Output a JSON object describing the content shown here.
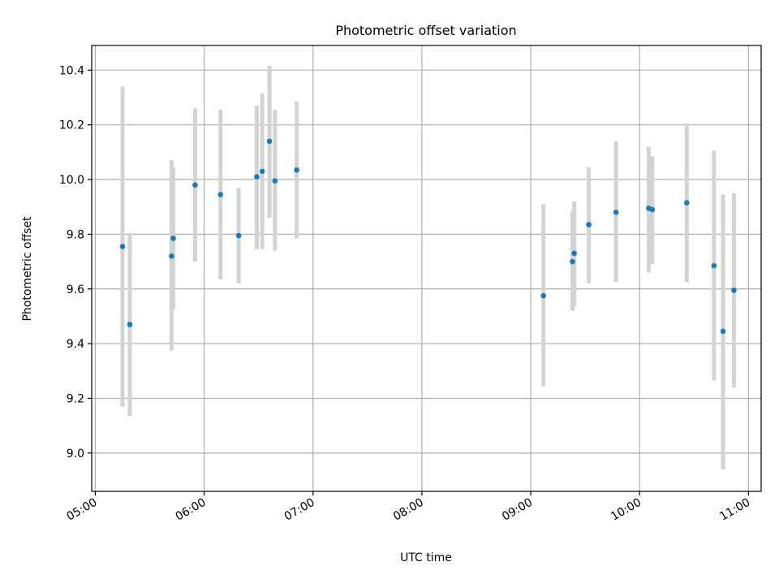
{
  "chart_data": {
    "type": "scatter",
    "title": "Photometric offset variation",
    "xlabel": "UTC time",
    "ylabel": "Photometric offset",
    "xlim": [
      "04:58",
      "11:07"
    ],
    "ylim": [
      8.86,
      10.49
    ],
    "grid": true,
    "x_ticks": [
      "05:00",
      "06:00",
      "07:00",
      "08:00",
      "09:00",
      "10:00",
      "11:00"
    ],
    "y_ticks": [
      "9.0",
      "9.2",
      "9.4",
      "9.6",
      "9.8",
      "10.0",
      "10.2",
      "10.4"
    ],
    "marker_color": "#1f77b4",
    "errorbar_color": "#d3d3d3",
    "series": [
      {
        "points": [
          {
            "x": "05:15",
            "y": 9.755,
            "ylo": 9.17,
            "yhi": 10.34
          },
          {
            "x": "05:19",
            "y": 9.47,
            "ylo": 9.135,
            "yhi": 9.805
          },
          {
            "x": "05:42",
            "y": 9.72,
            "ylo": 9.375,
            "yhi": 10.07
          },
          {
            "x": "05:43",
            "y": 9.785,
            "ylo": 9.525,
            "yhi": 10.045
          },
          {
            "x": "05:55",
            "y": 9.98,
            "ylo": 9.7,
            "yhi": 10.26
          },
          {
            "x": "06:09",
            "y": 9.945,
            "ylo": 9.635,
            "yhi": 10.255
          },
          {
            "x": "06:19",
            "y": 9.795,
            "ylo": 9.62,
            "yhi": 9.97
          },
          {
            "x": "06:29",
            "y": 10.01,
            "ylo": 9.745,
            "yhi": 10.27
          },
          {
            "x": "06:32",
            "y": 10.03,
            "ylo": 9.745,
            "yhi": 10.315
          },
          {
            "x": "06:36",
            "y": 10.14,
            "ylo": 9.86,
            "yhi": 10.415
          },
          {
            "x": "06:39",
            "y": 9.995,
            "ylo": 9.74,
            "yhi": 10.255
          },
          {
            "x": "06:51",
            "y": 10.035,
            "ylo": 9.785,
            "yhi": 10.285
          },
          {
            "x": "09:07",
            "y": 9.575,
            "ylo": 9.245,
            "yhi": 9.91
          },
          {
            "x": "09:23",
            "y": 9.7,
            "ylo": 9.52,
            "yhi": 9.885
          },
          {
            "x": "09:24",
            "y": 9.73,
            "ylo": 9.535,
            "yhi": 9.92
          },
          {
            "x": "09:32",
            "y": 9.835,
            "ylo": 9.62,
            "yhi": 10.045
          },
          {
            "x": "09:47",
            "y": 9.88,
            "ylo": 9.625,
            "yhi": 10.14
          },
          {
            "x": "10:05",
            "y": 9.895,
            "ylo": 9.66,
            "yhi": 10.12
          },
          {
            "x": "10:07",
            "y": 9.89,
            "ylo": 9.69,
            "yhi": 10.085
          },
          {
            "x": "10:26",
            "y": 9.915,
            "ylo": 9.625,
            "yhi": 10.205
          },
          {
            "x": "10:41",
            "y": 9.685,
            "ylo": 9.265,
            "yhi": 10.105
          },
          {
            "x": "10:46",
            "y": 9.445,
            "ylo": 8.94,
            "yhi": 9.945
          },
          {
            "x": "10:52",
            "y": 9.595,
            "ylo": 9.24,
            "yhi": 9.95
          }
        ]
      }
    ]
  }
}
